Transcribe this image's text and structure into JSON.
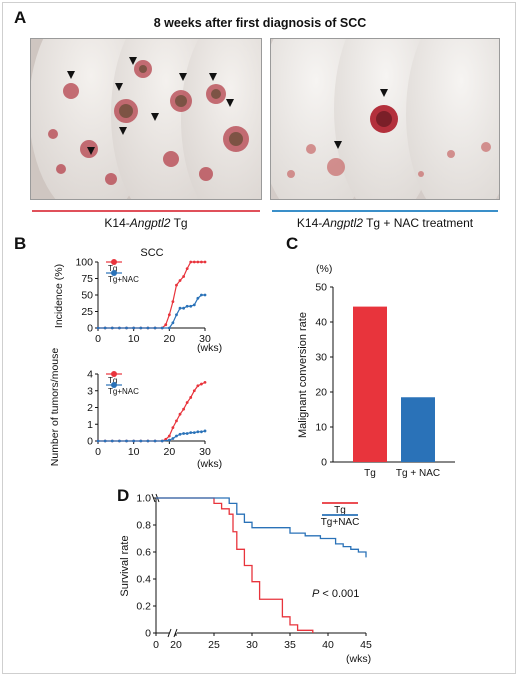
{
  "panel_a": {
    "letter": "A",
    "title": "8  weeks after first diagnosis of SCC",
    "left_caption_prefix": "K14-",
    "left_caption_gene": "Angptl2",
    "left_caption_suffix": " Tg",
    "right_caption_prefix": "K14-",
    "right_caption_gene": "Angptl2",
    "right_caption_suffix": " Tg + NAC treatment",
    "left_line_color": "#e0505a",
    "right_line_color": "#3a8fc9"
  },
  "panel_b": {
    "letter": "B",
    "top_title": "SCC",
    "top_ylabel": "Incidence (%)",
    "top_yticks": [
      "0",
      "25",
      "50",
      "75",
      "100"
    ],
    "bottom_ylabel": "Number  of  tumors/mouse",
    "bottom_yticks": [
      "0",
      "1",
      "2",
      "3",
      "4"
    ],
    "xticks": [
      "0",
      "10",
      "20",
      "30"
    ],
    "xunit": "(wks)",
    "legend": [
      "Tg",
      "Tg+NAC"
    ]
  },
  "panel_c": {
    "letter": "C",
    "yunit": "(%)",
    "ylabel": "Malignant conversion rate",
    "yticks": [
      "0",
      "10",
      "20",
      "30",
      "40",
      "50"
    ],
    "categories": [
      "Tg",
      "Tg + NAC"
    ]
  },
  "panel_d": {
    "letter": "D",
    "ylabel": "Survival rate",
    "yticks": [
      "0",
      "0.2",
      "0.4",
      "0.6",
      "0.8",
      "1.0"
    ],
    "xticks": [
      "0",
      "20",
      "25",
      "30",
      "35",
      "40",
      "45"
    ],
    "xunit": "(wks)",
    "legend": [
      "Tg",
      "Tg+NAC"
    ],
    "p_label": "P",
    "p_value": " < 0.001"
  },
  "colors": {
    "tg": "#e8343c",
    "nac": "#2a72b8"
  },
  "chart_data": [
    {
      "type": "line",
      "title": "SCC",
      "xlabel": "(wks)",
      "ylabel": "Incidence (%)",
      "xlim": [
        0,
        30
      ],
      "ylim": [
        0,
        100
      ],
      "series": [
        {
          "name": "Tg",
          "x": [
            0,
            2,
            4,
            6,
            8,
            10,
            12,
            14,
            16,
            18,
            19,
            20,
            21,
            22,
            23,
            24,
            25,
            26,
            27,
            28,
            29,
            30
          ],
          "y": [
            0,
            0,
            0,
            0,
            0,
            0,
            0,
            0,
            0,
            0,
            5,
            20,
            40,
            65,
            72,
            78,
            90,
            100,
            100,
            100,
            100,
            100
          ]
        },
        {
          "name": "Tg+NAC",
          "x": [
            0,
            2,
            4,
            6,
            8,
            10,
            12,
            14,
            16,
            18,
            20,
            21,
            22,
            23,
            24,
            25,
            26,
            27,
            28,
            29,
            30
          ],
          "y": [
            0,
            0,
            0,
            0,
            0,
            0,
            0,
            0,
            0,
            0,
            0,
            8,
            20,
            30,
            30,
            33,
            33,
            35,
            45,
            50,
            50
          ]
        }
      ]
    },
    {
      "type": "line",
      "xlabel": "(wks)",
      "ylabel": "Number  of  tumors/mouse",
      "xlim": [
        0,
        30
      ],
      "ylim": [
        0,
        4
      ],
      "series": [
        {
          "name": "Tg",
          "x": [
            0,
            2,
            4,
            6,
            8,
            10,
            12,
            14,
            16,
            18,
            19,
            20,
            21,
            22,
            23,
            24,
            25,
            26,
            27,
            28,
            29,
            30
          ],
          "y": [
            0,
            0,
            0,
            0,
            0,
            0,
            0,
            0,
            0,
            0,
            0.1,
            0.3,
            0.8,
            1.2,
            1.6,
            1.9,
            2.3,
            2.6,
            3.0,
            3.3,
            3.4,
            3.5
          ]
        },
        {
          "name": "Tg+NAC",
          "x": [
            0,
            2,
            4,
            6,
            8,
            10,
            12,
            14,
            16,
            18,
            20,
            21,
            22,
            23,
            24,
            25,
            26,
            27,
            28,
            29,
            30
          ],
          "y": [
            0,
            0,
            0,
            0,
            0,
            0,
            0,
            0,
            0,
            0,
            0.05,
            0.15,
            0.3,
            0.4,
            0.45,
            0.45,
            0.5,
            0.5,
            0.55,
            0.55,
            0.6
          ]
        }
      ]
    },
    {
      "type": "bar",
      "ylabel": "Malignant conversion rate",
      "ylim": [
        0,
        50
      ],
      "categories": [
        "Tg",
        "Tg + NAC"
      ],
      "values": [
        44.4,
        18.5
      ]
    },
    {
      "type": "line",
      "xlabel": "(wks)",
      "ylabel": "Survival rate",
      "xlim": [
        0,
        45
      ],
      "ylim": [
        0,
        1
      ],
      "series": [
        {
          "name": "Tg",
          "x": [
            0,
            23,
            25,
            26,
            27,
            27.5,
            28,
            29,
            30,
            31,
            32,
            34,
            35,
            36,
            38
          ],
          "y": [
            1.0,
            1.0,
            0.96,
            0.92,
            0.88,
            0.75,
            0.62,
            0.5,
            0.38,
            0.25,
            0.25,
            0.12,
            0.06,
            0.02,
            0
          ]
        },
        {
          "name": "Tg+NAC",
          "x": [
            0,
            25,
            27,
            28,
            29,
            30,
            32,
            35,
            37,
            39,
            41,
            42,
            43,
            44,
            45
          ],
          "y": [
            1.0,
            1.0,
            0.96,
            0.88,
            0.82,
            0.78,
            0.78,
            0.74,
            0.72,
            0.7,
            0.66,
            0.64,
            0.62,
            0.6,
            0.56
          ]
        }
      ],
      "annotation": "P < 0.001"
    }
  ]
}
